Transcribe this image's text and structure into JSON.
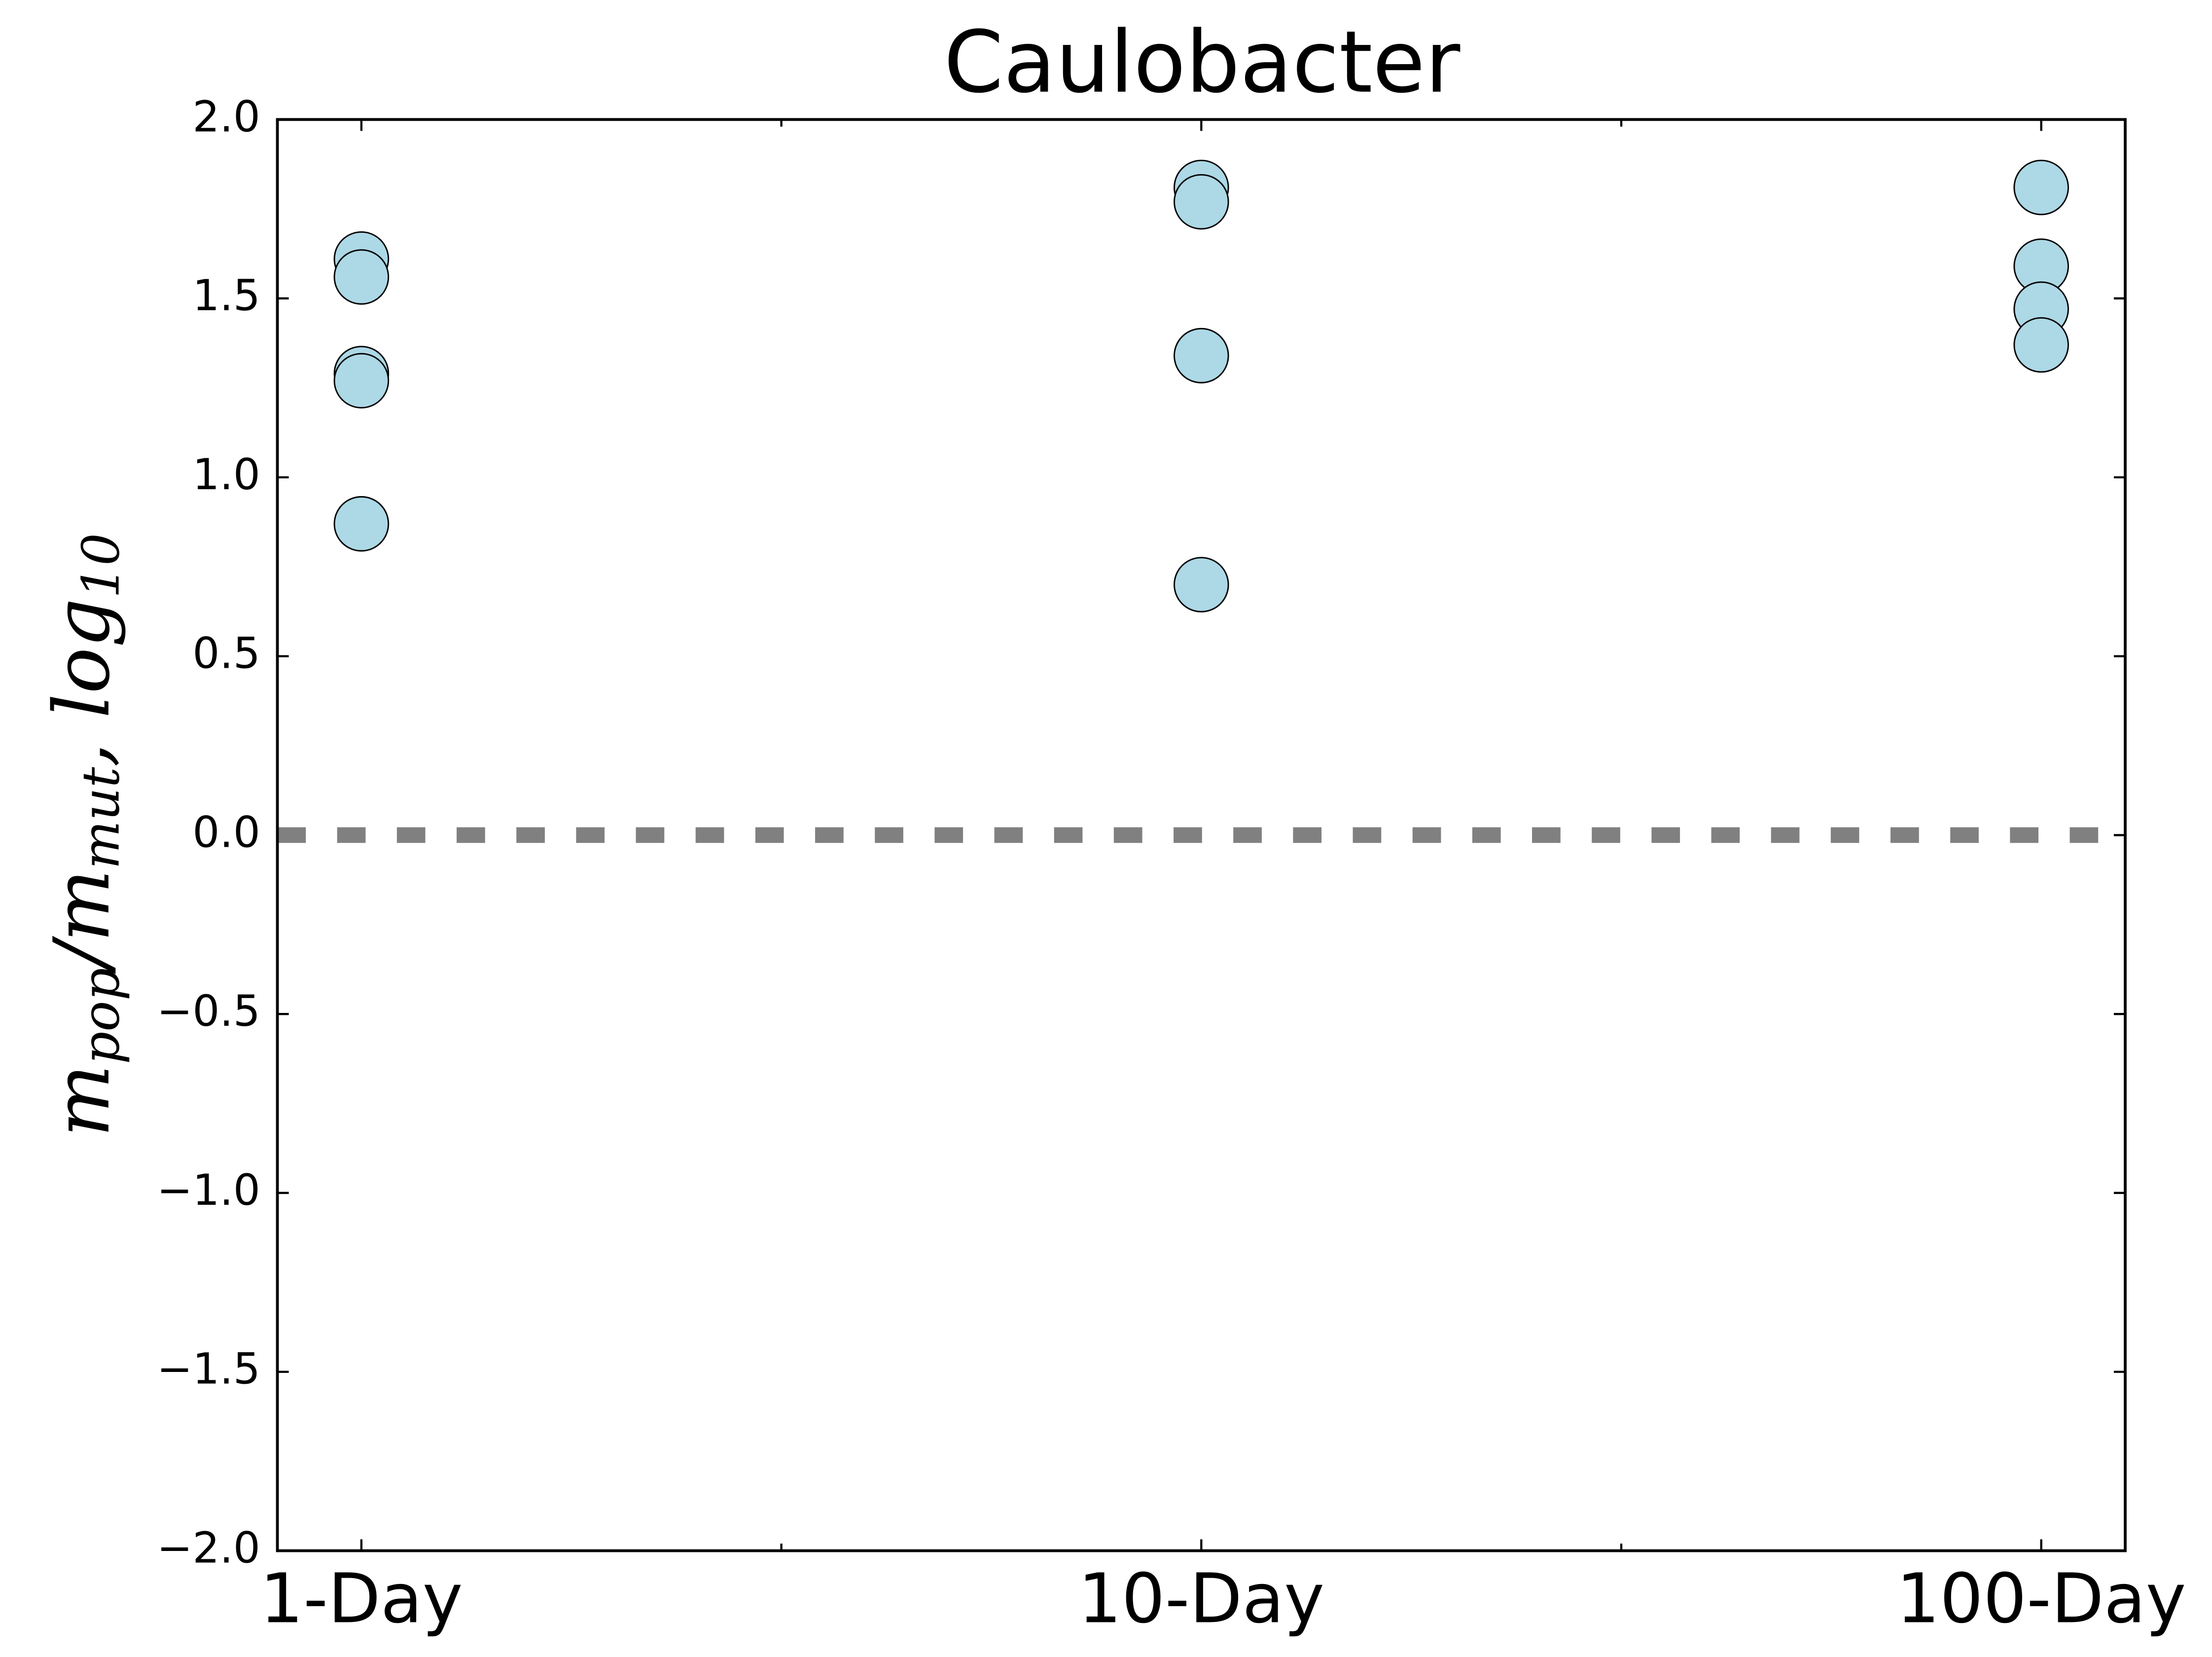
{
  "chart_data": {
    "type": "scatter",
    "title": "Caulobacter",
    "y_label": [
      [
        "m",
        "pop"
      ],
      [
        "/m",
        "mut"
      ],
      [
        ", log",
        "10"
      ]
    ],
    "x": [
      0,
      0,
      0,
      0,
      0,
      1,
      1,
      1,
      1,
      2,
      2,
      2,
      2
    ],
    "values": [
      1.61,
      1.56,
      1.29,
      1.27,
      0.87,
      1.81,
      1.77,
      1.34,
      0.7,
      1.81,
      1.59,
      1.47,
      1.37
    ],
    "color": "#add8e6",
    "xlim": [
      -0.1,
      2.1
    ],
    "xticks": [
      {
        "value": 0,
        "label": "1-Day"
      },
      {
        "value": 1,
        "label": "10-Day"
      },
      {
        "value": 2,
        "label": "100-Day"
      }
    ],
    "x_minor_ticks": [
      0.5,
      1.5
    ],
    "ylim": [
      -2,
      2
    ],
    "yticks": [
      {
        "value": -2,
        "label": "−2.0"
      },
      {
        "value": -1.5,
        "label": "−1.5"
      },
      {
        "value": -1,
        "label": "−1.0"
      },
      {
        "value": -0.5,
        "label": "−0.5"
      },
      {
        "value": 0,
        "label": "0.0"
      },
      {
        "value": 0.5,
        "label": "0.5"
      },
      {
        "value": 1,
        "label": "1.0"
      },
      {
        "value": 1.5,
        "label": "1.5"
      },
      {
        "value": 2,
        "label": "2.0"
      }
    ],
    "reference_line": {
      "y": 0,
      "color": "#808080"
    }
  }
}
